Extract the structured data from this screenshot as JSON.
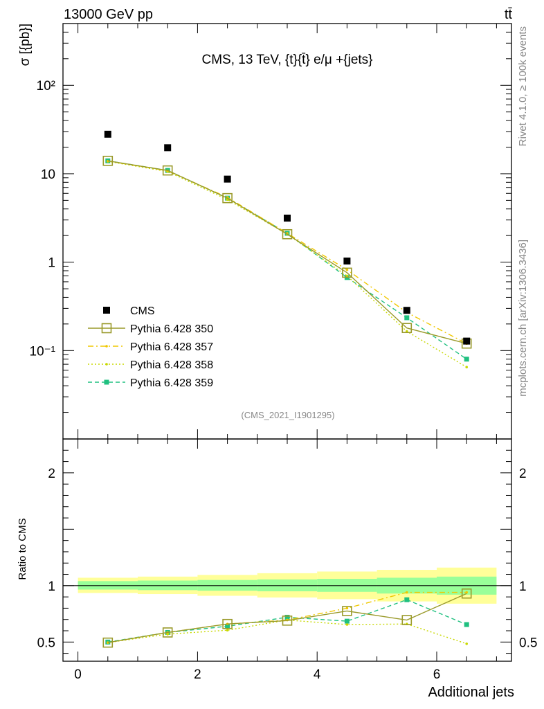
{
  "header": {
    "left": "13000 GeV pp",
    "right": "tt̄"
  },
  "side": {
    "rivet": "Rivet 4.1.0, ≥ 100k events",
    "mcplots": "mcplots.cern.ch [arXiv:1306.3436]"
  },
  "colors": {
    "data": "#000000",
    "s350": "#9a9a2a",
    "s357": "#f0c800",
    "s358": "#c8d800",
    "s359": "#20c080",
    "band_inner": "#99ff99",
    "band_outer": "#ffff99"
  },
  "chart_data": [
    {
      "type": "scatter",
      "title": "CMS, 13 TeV, {t}{t̄} e/μ +{jets}",
      "xlabel": "Additional jets",
      "ylabel": "σ [{pb}]",
      "yscale": "log",
      "xlim": [
        -0.25,
        7.25
      ],
      "ylim": [
        0.01,
        500
      ],
      "y_tick_labels": [
        "10⁻¹",
        "1",
        "10",
        "10²"
      ],
      "watermark": "(CMS_2021_I1901295)",
      "x": [
        0.5,
        1.5,
        2.5,
        3.5,
        4.5,
        5.5,
        6.5
      ],
      "series": [
        {
          "name": "CMS",
          "style": "data",
          "values": [
            28.0,
            19.7,
            8.7,
            3.15,
            1.03,
            0.285,
            0.128
          ]
        },
        {
          "name": "Pythia 6.428 350",
          "style": "open-square-solid",
          "values": [
            14.0,
            10.9,
            5.3,
            2.07,
            0.76,
            0.18,
            0.12
          ]
        },
        {
          "name": "Pythia 6.428 357",
          "style": "dash-dot",
          "values": [
            13.9,
            10.8,
            5.4,
            2.12,
            0.82,
            0.27,
            0.12
          ]
        },
        {
          "name": "Pythia 6.428 358",
          "style": "dotted",
          "values": [
            13.8,
            10.6,
            5.1,
            2.07,
            0.7,
            0.165,
            0.065
          ]
        },
        {
          "name": "Pythia 6.428 359",
          "style": "dashed-square",
          "values": [
            14.0,
            10.9,
            5.3,
            2.12,
            0.67,
            0.235,
            0.08
          ]
        }
      ]
    },
    {
      "type": "line",
      "ylabel": "Ratio to CMS",
      "xlabel": "Additional jets",
      "xlim": [
        -0.25,
        7.25
      ],
      "ylim": [
        0.33,
        2.3
      ],
      "y_tick_labels": [
        "0.5",
        "1",
        "2"
      ],
      "x_tick_labels": [
        "0",
        "2",
        "4",
        "6"
      ],
      "x": [
        0.5,
        1.5,
        2.5,
        3.5,
        4.5,
        5.5,
        6.5
      ],
      "band_edges": [
        0,
        1,
        2,
        3,
        4,
        5,
        6,
        7
      ],
      "band_inner": [
        [
          0.965,
          1.04
        ],
        [
          0.96,
          1.045
        ],
        [
          0.955,
          1.05
        ],
        [
          0.95,
          1.055
        ],
        [
          0.945,
          1.06
        ],
        [
          0.93,
          1.07
        ],
        [
          0.92,
          1.08
        ]
      ],
      "band_outer": [
        [
          0.935,
          1.07
        ],
        [
          0.925,
          1.08
        ],
        [
          0.91,
          1.095
        ],
        [
          0.895,
          1.11
        ],
        [
          0.88,
          1.125
        ],
        [
          0.86,
          1.14
        ],
        [
          0.84,
          1.16
        ]
      ],
      "series": [
        {
          "name": "Pythia 6.428 350",
          "values": [
            0.495,
            0.585,
            0.66,
            0.69,
            0.775,
            0.695,
            0.93
          ]
        },
        {
          "name": "Pythia 6.428 357",
          "values": [
            0.495,
            0.585,
            0.66,
            0.695,
            0.8,
            0.94,
            0.94
          ]
        },
        {
          "name": "Pythia 6.428 358",
          "values": [
            0.495,
            0.57,
            0.605,
            0.695,
            0.655,
            0.66,
            0.485
          ]
        },
        {
          "name": "Pythia 6.428 359",
          "values": [
            0.5,
            0.585,
            0.64,
            0.72,
            0.685,
            0.875,
            0.655
          ]
        }
      ]
    }
  ]
}
